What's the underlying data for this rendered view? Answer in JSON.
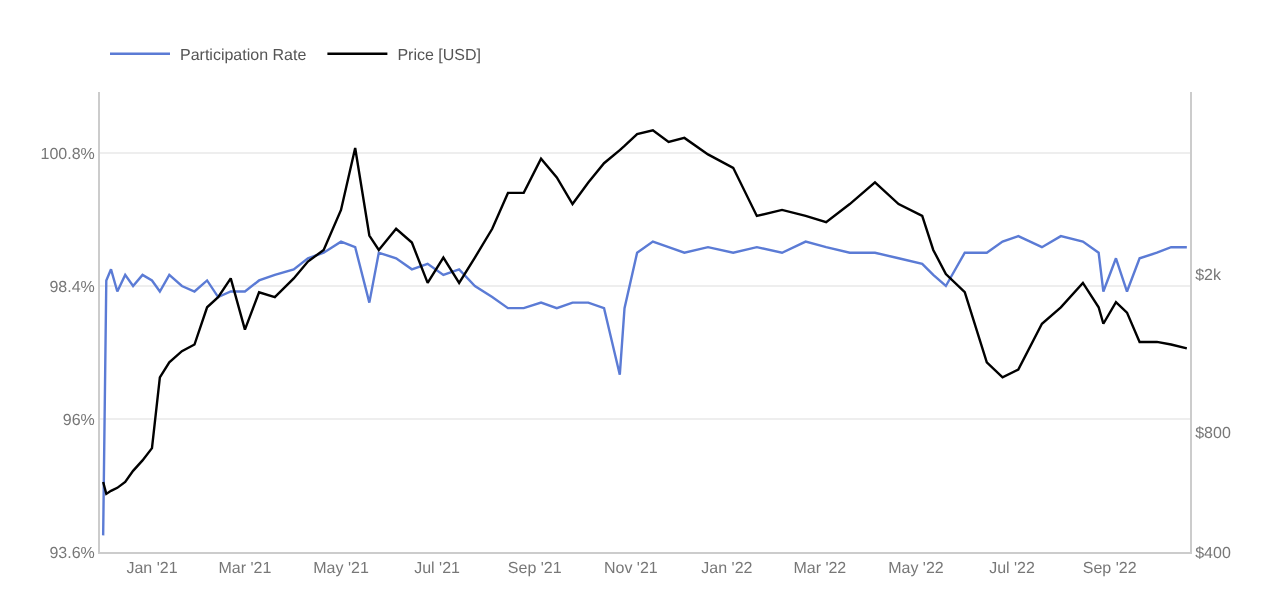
{
  "chart_data": {
    "type": "line",
    "x": [
      "2020-12-01",
      "2020-12-03",
      "2020-12-06",
      "2020-12-10",
      "2020-12-15",
      "2020-12-20",
      "2020-12-26",
      "2021-01-01",
      "2021-01-06",
      "2021-01-12",
      "2021-01-20",
      "2021-01-28",
      "2021-02-05",
      "2021-02-12",
      "2021-02-20",
      "2021-03-01",
      "2021-03-10",
      "2021-03-20",
      "2021-04-01",
      "2021-04-10",
      "2021-04-20",
      "2021-05-01",
      "2021-05-10",
      "2021-05-19",
      "2021-05-25",
      "2021-06-05",
      "2021-06-15",
      "2021-06-25",
      "2021-07-05",
      "2021-07-15",
      "2021-07-25",
      "2021-08-05",
      "2021-08-15",
      "2021-08-25",
      "2021-09-05",
      "2021-09-15",
      "2021-09-25",
      "2021-10-05",
      "2021-10-15",
      "2021-10-25",
      "2021-10-28",
      "2021-11-05",
      "2021-11-15",
      "2021-11-25",
      "2021-12-05",
      "2021-12-20",
      "2022-01-05",
      "2022-01-20",
      "2022-02-05",
      "2022-02-20",
      "2022-03-05",
      "2022-03-20",
      "2022-04-05",
      "2022-04-20",
      "2022-05-05",
      "2022-05-12",
      "2022-05-20",
      "2022-06-01",
      "2022-06-15",
      "2022-06-25",
      "2022-07-05",
      "2022-07-20",
      "2022-08-01",
      "2022-08-15",
      "2022-08-25",
      "2022-08-28",
      "2022-09-05",
      "2022-09-12",
      "2022-09-20",
      "2022-10-01",
      "2022-10-10",
      "2022-10-20"
    ],
    "xlim": [
      "2020-11-29",
      "2022-10-22"
    ],
    "xticks": [
      {
        "value": "2021-01-01",
        "label": "Jan '21"
      },
      {
        "value": "2021-03-01",
        "label": "Mar '21"
      },
      {
        "value": "2021-05-01",
        "label": "May '21"
      },
      {
        "value": "2021-07-01",
        "label": "Jul '21"
      },
      {
        "value": "2021-09-01",
        "label": "Sep '21"
      },
      {
        "value": "2021-11-01",
        "label": "Nov '21"
      },
      {
        "value": "2022-01-01",
        "label": "Jan '22"
      },
      {
        "value": "2022-03-01",
        "label": "Mar '22"
      },
      {
        "value": "2022-05-01",
        "label": "May '22"
      },
      {
        "value": "2022-07-01",
        "label": "Jul '22"
      },
      {
        "value": "2022-09-01",
        "label": "Sep '22"
      }
    ],
    "ylim": [
      93.6,
      101.9
    ],
    "yticks": [
      {
        "value": 93.6,
        "label": "93.6%"
      },
      {
        "value": 96,
        "label": "96%"
      },
      {
        "value": 98.4,
        "label": "98.4%"
      },
      {
        "value": 100.8,
        "label": "100.8%"
      }
    ],
    "y2lim": [
      400,
      5740
    ],
    "y2ticks": [
      {
        "value": 400,
        "label": "$400"
      },
      {
        "value": 800,
        "label": "$800"
      },
      {
        "value": 2000,
        "label": "$2k"
      }
    ],
    "log": "y2",
    "grid": "y",
    "legend": "top left",
    "marker": "none",
    "line_style": "solid",
    "series": [
      {
        "name": "Participation Rate",
        "color": "#5b7bd5",
        "values": [
          93.9,
          98.5,
          98.7,
          98.3,
          98.6,
          98.4,
          98.6,
          98.5,
          98.3,
          98.6,
          98.4,
          98.3,
          98.5,
          98.2,
          98.3,
          98.3,
          98.5,
          98.6,
          98.7,
          98.9,
          99.0,
          99.2,
          99.1,
          98.1,
          99.0,
          98.9,
          98.7,
          98.8,
          98.6,
          98.7,
          98.4,
          98.2,
          98.0,
          98.0,
          98.1,
          98.0,
          98.1,
          98.1,
          98.0,
          96.8,
          98.0,
          99.0,
          99.2,
          99.1,
          99.0,
          99.1,
          99.0,
          99.1,
          99.0,
          99.2,
          99.1,
          99.0,
          99.0,
          98.9,
          98.8,
          98.6,
          98.4,
          99.0,
          99.0,
          99.2,
          99.3,
          99.1,
          99.3,
          99.2,
          99.0,
          98.3,
          98.9,
          98.3,
          98.9,
          99.0,
          99.1,
          99.1
        ]
      },
      {
        "name": "Price [USD]",
        "color": "#000000",
        "axis": "y2",
        "values": [
          600,
          560,
          570,
          580,
          600,
          640,
          680,
          730,
          1100,
          1200,
          1280,
          1330,
          1650,
          1750,
          1950,
          1450,
          1800,
          1750,
          1950,
          2150,
          2300,
          2900,
          4150,
          2500,
          2300,
          2600,
          2400,
          1900,
          2200,
          1900,
          2200,
          2600,
          3200,
          3200,
          3900,
          3500,
          3000,
          3400,
          3800,
          4100,
          4200,
          4500,
          4600,
          4300,
          4400,
          4000,
          3700,
          2800,
          2900,
          2800,
          2700,
          3000,
          3400,
          3000,
          2800,
          2300,
          2000,
          1800,
          1200,
          1100,
          1150,
          1500,
          1650,
          1900,
          1650,
          1500,
          1700,
          1600,
          1350,
          1350,
          1330,
          1300
        ]
      }
    ]
  }
}
